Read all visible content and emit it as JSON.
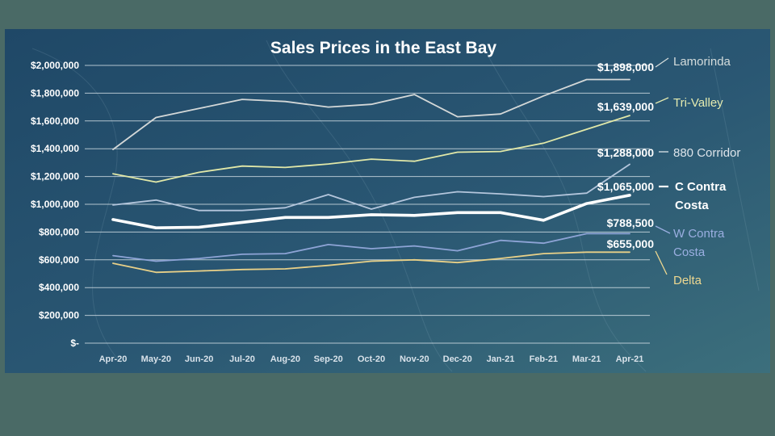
{
  "colors": {
    "slide_bg": "#4a6a66",
    "chart_bg": "#244a66",
    "gridline": "#e2ebf0"
  },
  "chart_data": {
    "type": "line",
    "title": "Sales Prices in the East Bay",
    "xlabel": "",
    "ylabel": "",
    "categories": [
      "Apr-20",
      "May-20",
      "Jun-20",
      "Jul-20",
      "Aug-20",
      "Sep-20",
      "Oct-20",
      "Nov-20",
      "Dec-20",
      "Jan-21",
      "Feb-21",
      "Mar-21",
      "Apr-21"
    ],
    "ylim": [
      0,
      2000000
    ],
    "yticks": [
      {
        "value": 0,
        "label": "$-"
      },
      {
        "value": 200000,
        "label": "$200,000"
      },
      {
        "value": 400000,
        "label": "$400,000"
      },
      {
        "value": 600000,
        "label": "$600,000"
      },
      {
        "value": 800000,
        "label": "$800,000"
      },
      {
        "value": 1000000,
        "label": "$1,000,000"
      },
      {
        "value": 1200000,
        "label": "$1,200,000"
      },
      {
        "value": 1400000,
        "label": "$1,400,000"
      },
      {
        "value": 1600000,
        "label": "$1,600,000"
      },
      {
        "value": 1800000,
        "label": "$1,800,000"
      },
      {
        "value": 2000000,
        "label": "$2,000,000"
      }
    ],
    "grid": true,
    "series": [
      {
        "key": "lamorinda",
        "name": "Lamorinda",
        "price_label": "$1,898,000",
        "color": "#d4d8d8",
        "legend_color": "#d4dcdc",
        "values": [
          1395000,
          1625000,
          1690000,
          1755000,
          1740000,
          1700000,
          1720000,
          1790000,
          1630000,
          1650000,
          1780000,
          1898000,
          1898000
        ]
      },
      {
        "key": "trivalley",
        "name": "Tri-Valley",
        "price_label": "$1,639,000",
        "color": "#e1e8a8",
        "legend_color": "#e4ebb0",
        "values": [
          1220000,
          1160000,
          1230000,
          1275000,
          1265000,
          1290000,
          1325000,
          1310000,
          1375000,
          1380000,
          1440000,
          1540000,
          1639000
        ]
      },
      {
        "key": "corridor880",
        "name": "880 Corridor",
        "price_label": "$1,288,000",
        "color": "#b4c6dc",
        "legend_color": "#dde4ea",
        "values": [
          995000,
          1030000,
          955000,
          955000,
          975000,
          1070000,
          965000,
          1050000,
          1090000,
          1075000,
          1055000,
          1080000,
          1288000
        ]
      },
      {
        "key": "ccontracosta",
        "name": "C Contra Costa",
        "price_label": "$1,065,000",
        "color": "#ffffff",
        "legend_color": "#ffffff",
        "values": [
          890000,
          830000,
          835000,
          870000,
          905000,
          905000,
          925000,
          920000,
          940000,
          940000,
          885000,
          1005000,
          1065000
        ]
      },
      {
        "key": "wcontracosta",
        "name": "W Contra Costa",
        "price_label": "$788,500",
        "color": "#8ea4d6",
        "legend_color": "#9aaee0",
        "values": [
          630000,
          590000,
          610000,
          640000,
          645000,
          710000,
          680000,
          700000,
          665000,
          740000,
          720000,
          788500,
          788500
        ]
      },
      {
        "key": "delta",
        "name": "Delta",
        "price_label": "$655,000",
        "color": "#e8d088",
        "legend_color": "#eed890",
        "values": [
          575000,
          510000,
          520000,
          530000,
          535000,
          560000,
          590000,
          600000,
          580000,
          610000,
          645000,
          655000,
          655000
        ]
      }
    ]
  },
  "legend": {
    "lamorinda": "Lamorinda",
    "trivalley": "Tri-Valley",
    "corridor880": "880 Corridor",
    "ccontracosta_line1": "C Contra",
    "ccontracosta_line2": "Costa",
    "wcontracosta_line1": "W Contra",
    "wcontracosta_line2": "Costa",
    "delta": "Delta"
  }
}
